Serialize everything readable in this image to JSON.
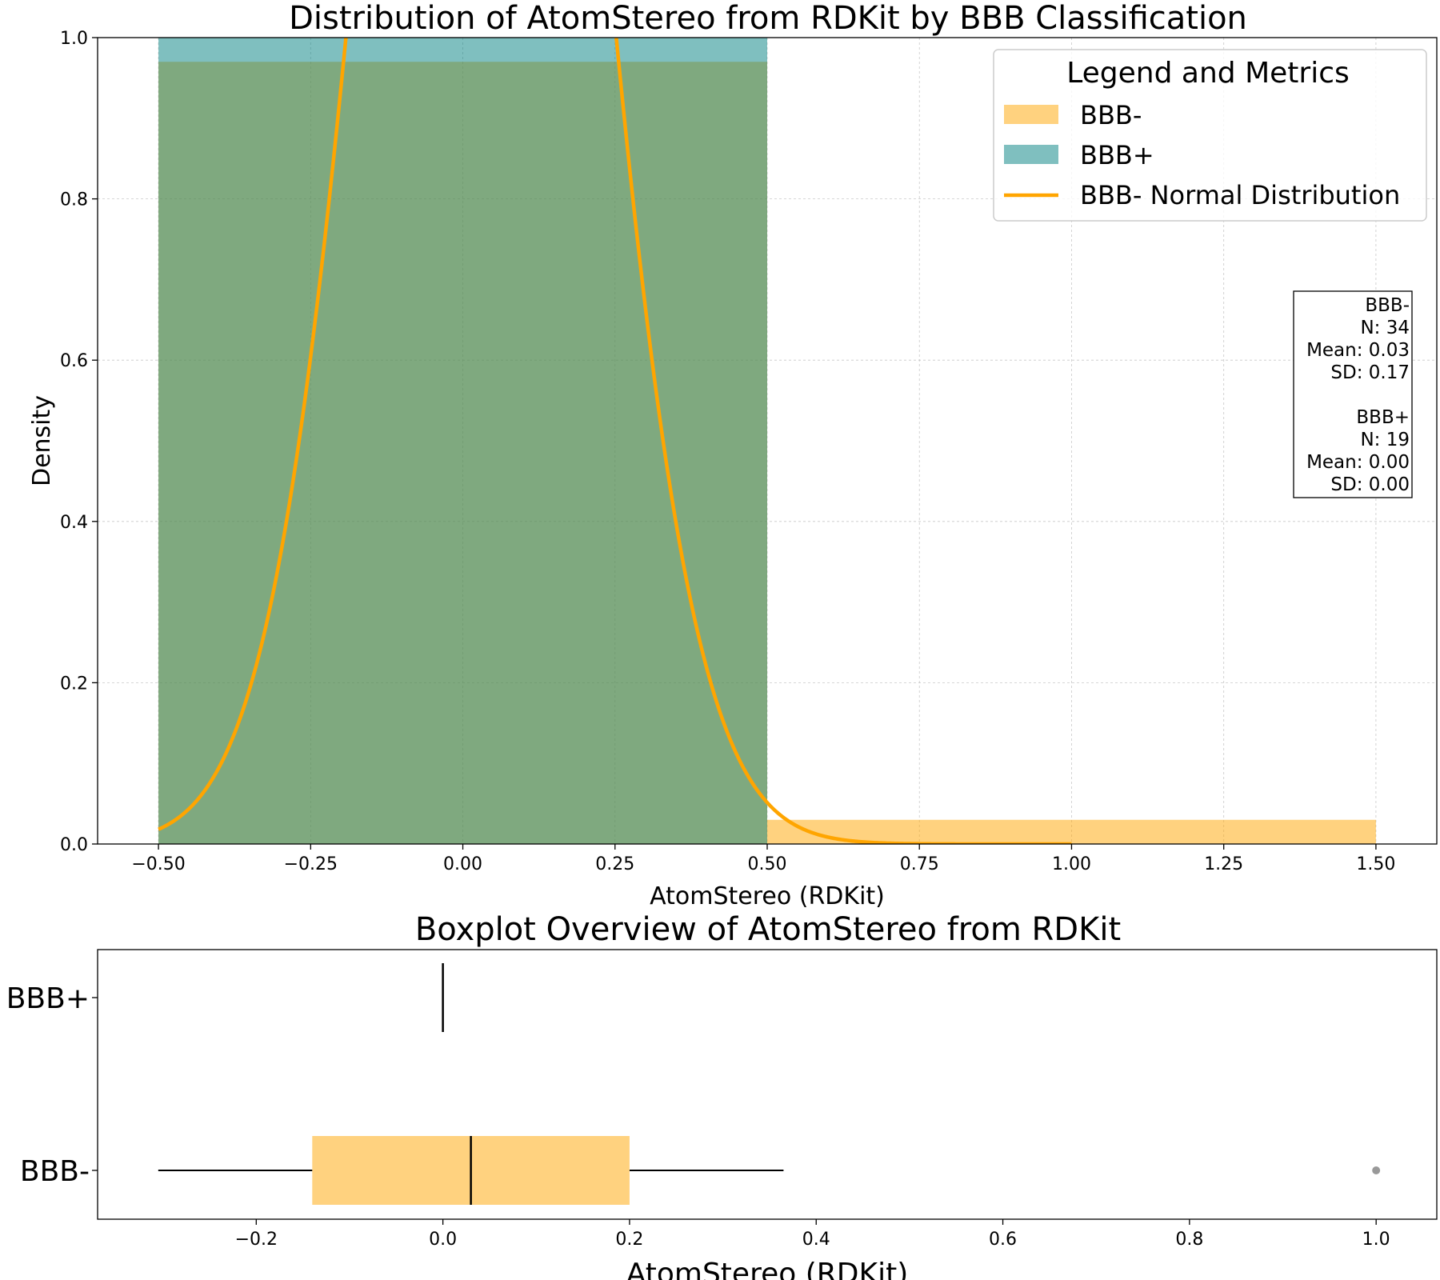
{
  "colors": {
    "bbb_minus": "#ffa500",
    "bbb_plus": "#008080",
    "normal_curve": "#ffa500",
    "outlier": "#999999",
    "grid": "#b0b0b0"
  },
  "chart_data": [
    {
      "type": "histogram",
      "title": "Distribution of AtomStereo from RDKit by BBB Classification",
      "xlabel": "AtomStereo (RDKit)",
      "ylabel": "Density",
      "xlim": [
        -0.6,
        1.6
      ],
      "ylim": [
        0,
        1.0
      ],
      "xticks": [
        -0.5,
        -0.25,
        0.0,
        0.25,
        0.5,
        0.75,
        1.0,
        1.25,
        1.5
      ],
      "xtick_labels": [
        "−0.50",
        "−0.25",
        "0.00",
        "0.25",
        "0.50",
        "0.75",
        "1.00",
        "1.25",
        "1.50"
      ],
      "yticks": [
        0.0,
        0.2,
        0.4,
        0.6,
        0.8,
        1.0
      ],
      "ytick_labels": [
        "0.0",
        "0.2",
        "0.4",
        "0.6",
        "0.8",
        "1.0"
      ],
      "grid": true,
      "series": [
        {
          "name": "BBB-",
          "color": "#ffa500",
          "opacity": 0.5,
          "bins": [
            {
              "x0": -0.5,
              "x1": 0.5,
              "density": 0.97
            },
            {
              "x0": 0.5,
              "x1": 1.5,
              "density": 0.03
            }
          ]
        },
        {
          "name": "BBB+",
          "color": "#008080",
          "opacity": 0.5,
          "bins": [
            {
              "x0": -0.5,
              "x1": 0.5,
              "density": 1.0
            }
          ]
        }
      ],
      "curve": {
        "name": "BBB- Normal Distribution",
        "color": "#ffa500",
        "mean": 0.03,
        "sd": 0.17,
        "x_range": [
          -0.5,
          1.0
        ]
      },
      "legend": {
        "title": "Legend and Metrics",
        "position": "top-right",
        "entries": [
          {
            "label": "BBB-",
            "kind": "patch",
            "color": "#ffa500",
            "opacity": 0.5
          },
          {
            "label": "BBB+",
            "kind": "patch",
            "color": "#008080",
            "opacity": 0.5
          },
          {
            "label": "BBB- Normal Distribution",
            "kind": "line",
            "color": "#ffa500"
          }
        ]
      },
      "metrics_box": {
        "position": "right",
        "lines": [
          "BBB-",
          "N: 34",
          "Mean: 0.03",
          "SD: 0.17",
          "",
          "BBB+",
          "N: 19",
          "Mean: 0.00",
          "SD: 0.00"
        ]
      }
    },
    {
      "type": "boxplot",
      "title": "Boxplot Overview of AtomStereo from RDKit",
      "xlabel": "AtomStereo (RDKit)",
      "xlim": [
        -0.37,
        1.065
      ],
      "xticks": [
        -0.2,
        0.0,
        0.2,
        0.4,
        0.6,
        0.8,
        1.0
      ],
      "xtick_labels": [
        "−0.2",
        "0.0",
        "0.2",
        "0.4",
        "0.6",
        "0.8",
        "1.0"
      ],
      "categories": [
        "BBB+",
        "BBB-"
      ],
      "boxes": [
        {
          "name": "BBB+",
          "whisker_low": 0.0,
          "q1": 0.0,
          "median": 0.0,
          "q3": 0.0,
          "whisker_high": 0.0,
          "outliers": []
        },
        {
          "name": "BBB-",
          "whisker_low": -0.305,
          "q1": -0.14,
          "median": 0.03,
          "q3": 0.2,
          "whisker_high": 0.365,
          "outliers": [
            1.0
          ],
          "color": "#ffa500",
          "opacity": 0.5
        }
      ]
    }
  ]
}
